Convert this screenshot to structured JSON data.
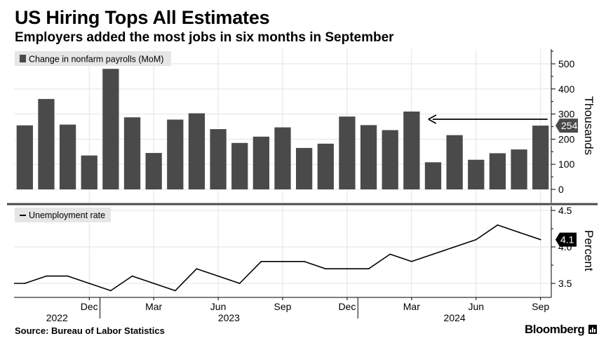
{
  "header": {
    "title": "US Hiring Tops All Estimates",
    "subtitle": "Employers added the most jobs in six months in September"
  },
  "footer": {
    "source": "Source: Bureau of Labor Statistics",
    "brand": "Bloomberg"
  },
  "colors": {
    "bars": "#4a4a4a",
    "line": "#000000",
    "legend_bg": "#e6e6e6",
    "grid": "#e3e3e3",
    "callout_bar": "#4a4a4a",
    "callout_line": "#000000"
  },
  "chart_data": [
    {
      "type": "bar",
      "legend": "Change in nonfarm payrolls (MoM)",
      "axis_title": "Thousands",
      "categories": [
        "Sep 2022",
        "Oct 2022",
        "Nov 2022",
        "Dec 2022",
        "Jan 2023",
        "Feb 2023",
        "Mar 2023",
        "Apr 2023",
        "May 2023",
        "Jun 2023",
        "Jul 2023",
        "Aug 2023",
        "Sep 2023",
        "Oct 2023",
        "Nov 2023",
        "Dec 2023",
        "Jan 2024",
        "Feb 2024",
        "Mar 2024",
        "Apr 2024",
        "May 2024",
        "Jun 2024",
        "Jul 2024",
        "Aug 2024",
        "Sep 2024"
      ],
      "values": [
        255,
        360,
        258,
        135,
        480,
        287,
        145,
        278,
        303,
        240,
        185,
        210,
        247,
        165,
        182,
        290,
        256,
        236,
        310,
        108,
        216,
        118,
        144,
        159,
        254
      ],
      "ylim": [
        -30,
        560
      ],
      "yticks": [
        0,
        100,
        200,
        300,
        400,
        500
      ],
      "callout": "254",
      "annotation": "arrow pointing left from latest bar to March 2024 peak"
    },
    {
      "type": "line",
      "legend": "Unemployment rate",
      "axis_title": "Percent",
      "categories": [
        "Sep 2022",
        "Oct 2022",
        "Nov 2022",
        "Dec 2022",
        "Jan 2023",
        "Feb 2023",
        "Mar 2023",
        "Apr 2023",
        "May 2023",
        "Jun 2023",
        "Jul 2023",
        "Aug 2023",
        "Sep 2023",
        "Oct 2023",
        "Nov 2023",
        "Dec 2023",
        "Jan 2024",
        "Feb 2024",
        "Mar 2024",
        "Apr 2024",
        "May 2024",
        "Jun 2024",
        "Jul 2024",
        "Aug 2024",
        "Sep 2024"
      ],
      "values": [
        3.5,
        3.6,
        3.6,
        3.5,
        3.4,
        3.6,
        3.5,
        3.4,
        3.7,
        3.6,
        3.5,
        3.8,
        3.8,
        3.8,
        3.7,
        3.7,
        3.7,
        3.9,
        3.8,
        3.9,
        4.0,
        4.1,
        4.3,
        4.2,
        4.1
      ],
      "ylim": [
        3.3,
        4.5
      ],
      "yticks": [
        3.5,
        4.0,
        4.5
      ],
      "callout": "4.1"
    }
  ],
  "x_axis": {
    "month_labels": [
      {
        "index": 3,
        "label": "Dec"
      },
      {
        "index": 6,
        "label": "Mar"
      },
      {
        "index": 9,
        "label": "Jun"
      },
      {
        "index": 12,
        "label": "Sep"
      },
      {
        "index": 15,
        "label": "Dec"
      },
      {
        "index": 18,
        "label": "Mar"
      },
      {
        "index": 21,
        "label": "Jun"
      },
      {
        "index": 24,
        "label": "Sep"
      }
    ],
    "year_labels": [
      {
        "label": "2022",
        "from": 0,
        "to": 3
      },
      {
        "label": "2023",
        "from": 4,
        "to": 15
      },
      {
        "label": "2024",
        "from": 16,
        "to": 24
      }
    ]
  }
}
